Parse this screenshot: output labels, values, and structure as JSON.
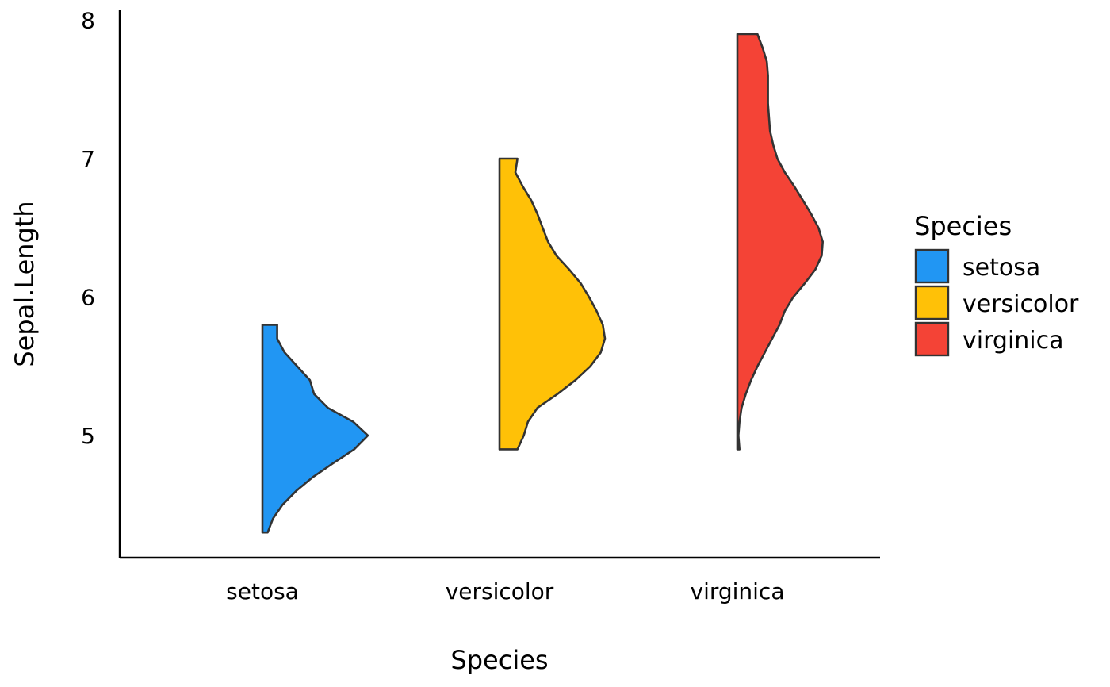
{
  "chart_data": {
    "type": "half-violin",
    "title": "",
    "xlabel": "Species",
    "ylabel": "Sepal.Length",
    "categories": [
      "setosa",
      "versicolor",
      "virginica"
    ],
    "yticks": [
      5,
      6,
      7,
      8
    ],
    "ylim": [
      4.1,
      8.09
    ],
    "grid": false,
    "legend": {
      "title": "Species",
      "placement": "right",
      "entries": [
        "setosa",
        "versicolor",
        "virginica"
      ]
    },
    "series": [
      {
        "name": "setosa",
        "color": "#2196F3",
        "min": 4.3,
        "max": 5.8,
        "density_profile": [
          [
            4.3,
            0.05
          ],
          [
            4.4,
            0.1
          ],
          [
            4.5,
            0.19
          ],
          [
            4.6,
            0.32
          ],
          [
            4.7,
            0.48
          ],
          [
            4.8,
            0.67
          ],
          [
            4.9,
            0.87
          ],
          [
            5.0,
            1.0
          ],
          [
            5.1,
            0.86
          ],
          [
            5.2,
            0.62
          ],
          [
            5.3,
            0.49
          ],
          [
            5.4,
            0.45
          ],
          [
            5.5,
            0.33
          ],
          [
            5.6,
            0.21
          ],
          [
            5.7,
            0.14
          ],
          [
            5.8,
            0.14
          ]
        ]
      },
      {
        "name": "versicolor",
        "color": "#FFC107",
        "min": 4.9,
        "max": 7.0,
        "density_profile": [
          [
            4.9,
            0.17
          ],
          [
            5.0,
            0.23
          ],
          [
            5.1,
            0.27
          ],
          [
            5.2,
            0.36
          ],
          [
            5.3,
            0.55
          ],
          [
            5.4,
            0.72
          ],
          [
            5.5,
            0.86
          ],
          [
            5.6,
            0.96
          ],
          [
            5.7,
            1.0
          ],
          [
            5.8,
            0.98
          ],
          [
            5.9,
            0.92
          ],
          [
            6.0,
            0.85
          ],
          [
            6.1,
            0.77
          ],
          [
            6.2,
            0.66
          ],
          [
            6.3,
            0.54
          ],
          [
            6.4,
            0.46
          ],
          [
            6.5,
            0.41
          ],
          [
            6.6,
            0.36
          ],
          [
            6.7,
            0.3
          ],
          [
            6.8,
            0.22
          ],
          [
            6.9,
            0.15
          ],
          [
            7.0,
            0.17
          ]
        ]
      },
      {
        "name": "virginica",
        "color": "#F44336",
        "min": 4.9,
        "max": 7.9,
        "density_profile": [
          [
            4.9,
            0.02
          ],
          [
            5.0,
            0.01
          ],
          [
            5.1,
            0.02
          ],
          [
            5.2,
            0.04
          ],
          [
            5.3,
            0.08
          ],
          [
            5.4,
            0.13
          ],
          [
            5.5,
            0.19
          ],
          [
            5.6,
            0.26
          ],
          [
            5.7,
            0.33
          ],
          [
            5.8,
            0.4
          ],
          [
            5.9,
            0.45
          ],
          [
            6.0,
            0.53
          ],
          [
            6.1,
            0.64
          ],
          [
            6.2,
            0.74
          ],
          [
            6.3,
            0.8
          ],
          [
            6.4,
            0.81
          ],
          [
            6.5,
            0.77
          ],
          [
            6.6,
            0.7
          ],
          [
            6.7,
            0.62
          ],
          [
            6.8,
            0.54
          ],
          [
            6.9,
            0.45
          ],
          [
            7.0,
            0.38
          ],
          [
            7.1,
            0.34
          ],
          [
            7.2,
            0.31
          ],
          [
            7.3,
            0.3
          ],
          [
            7.4,
            0.29
          ],
          [
            7.5,
            0.29
          ],
          [
            7.6,
            0.29
          ],
          [
            7.7,
            0.28
          ],
          [
            7.8,
            0.24
          ],
          [
            7.9,
            0.19
          ]
        ]
      }
    ]
  }
}
